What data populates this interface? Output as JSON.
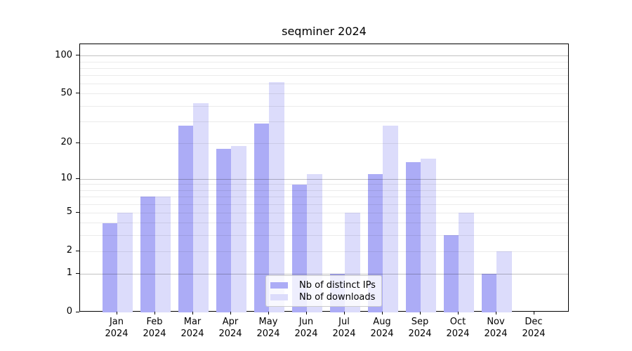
{
  "title": "seqminer 2024",
  "colors": {
    "bar_dark": "#acacf6",
    "bar_light": "#dcdcfb",
    "grid_major": "rgba(0,0,0,0.24)",
    "grid_minor": "rgba(0,0,0,0.08)",
    "spine": "#000000",
    "legend_border": "#cccccc",
    "legend_background": "rgba(255,255,255,0.8)"
  },
  "chart_data": {
    "type": "bar",
    "title": "seqminer 2024",
    "categories": [
      "Jan",
      "Feb",
      "Mar",
      "Apr",
      "May",
      "Jun",
      "Jul",
      "Aug",
      "Sep",
      "Oct",
      "Nov",
      "Dec"
    ],
    "xtick_year": "2024",
    "series": [
      {
        "name": "Nb of distinct IPs",
        "values": [
          4,
          7,
          28,
          18,
          29,
          9,
          1,
          11,
          14,
          3,
          1,
          0
        ]
      },
      {
        "name": "Nb of downloads",
        "values": [
          5,
          7,
          42,
          19,
          62,
          11,
          5,
          28,
          15,
          5,
          2,
          0
        ]
      }
    ],
    "yscale": "log1p",
    "ylim": [
      0,
      123
    ],
    "yticks": [
      0,
      1,
      2,
      5,
      10,
      20,
      50,
      100
    ],
    "grid_major_values": [
      1,
      10,
      100
    ],
    "grid_minor_values": [
      2,
      3,
      4,
      5,
      6,
      7,
      8,
      9,
      20,
      30,
      40,
      50,
      60,
      70,
      80,
      90
    ],
    "grid": "on",
    "legend_position": "lower center",
    "xlabel": "",
    "ylabel": ""
  }
}
